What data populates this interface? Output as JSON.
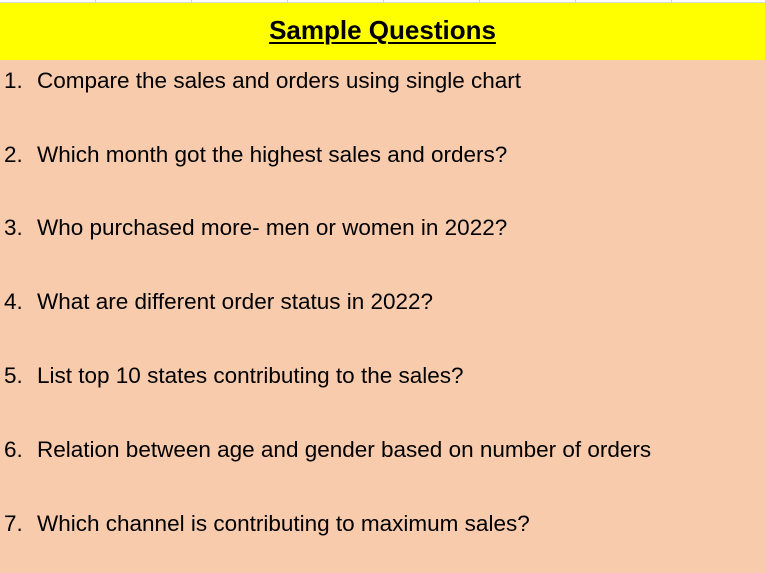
{
  "header": {
    "title": "Sample Questions",
    "background_color": "#ffff00"
  },
  "body": {
    "background_color": "#f8cbad"
  },
  "questions": [
    {
      "number": "1.",
      "text": "Compare the sales and orders using single chart"
    },
    {
      "number": "2.",
      "text": "Which month got the highest sales and orders?"
    },
    {
      "number": "3.",
      "text": "Who purchased more- men or women in 2022?"
    },
    {
      "number": "4.",
      "text": "What are different order status in 2022?"
    },
    {
      "number": "5.",
      "text": "List top 10 states contributing to the sales?"
    },
    {
      "number": "6.",
      "text": "Relation between age and gender based on number of orders"
    },
    {
      "number": "7.",
      "text": "Which channel is contributing to maximum sales?"
    }
  ]
}
